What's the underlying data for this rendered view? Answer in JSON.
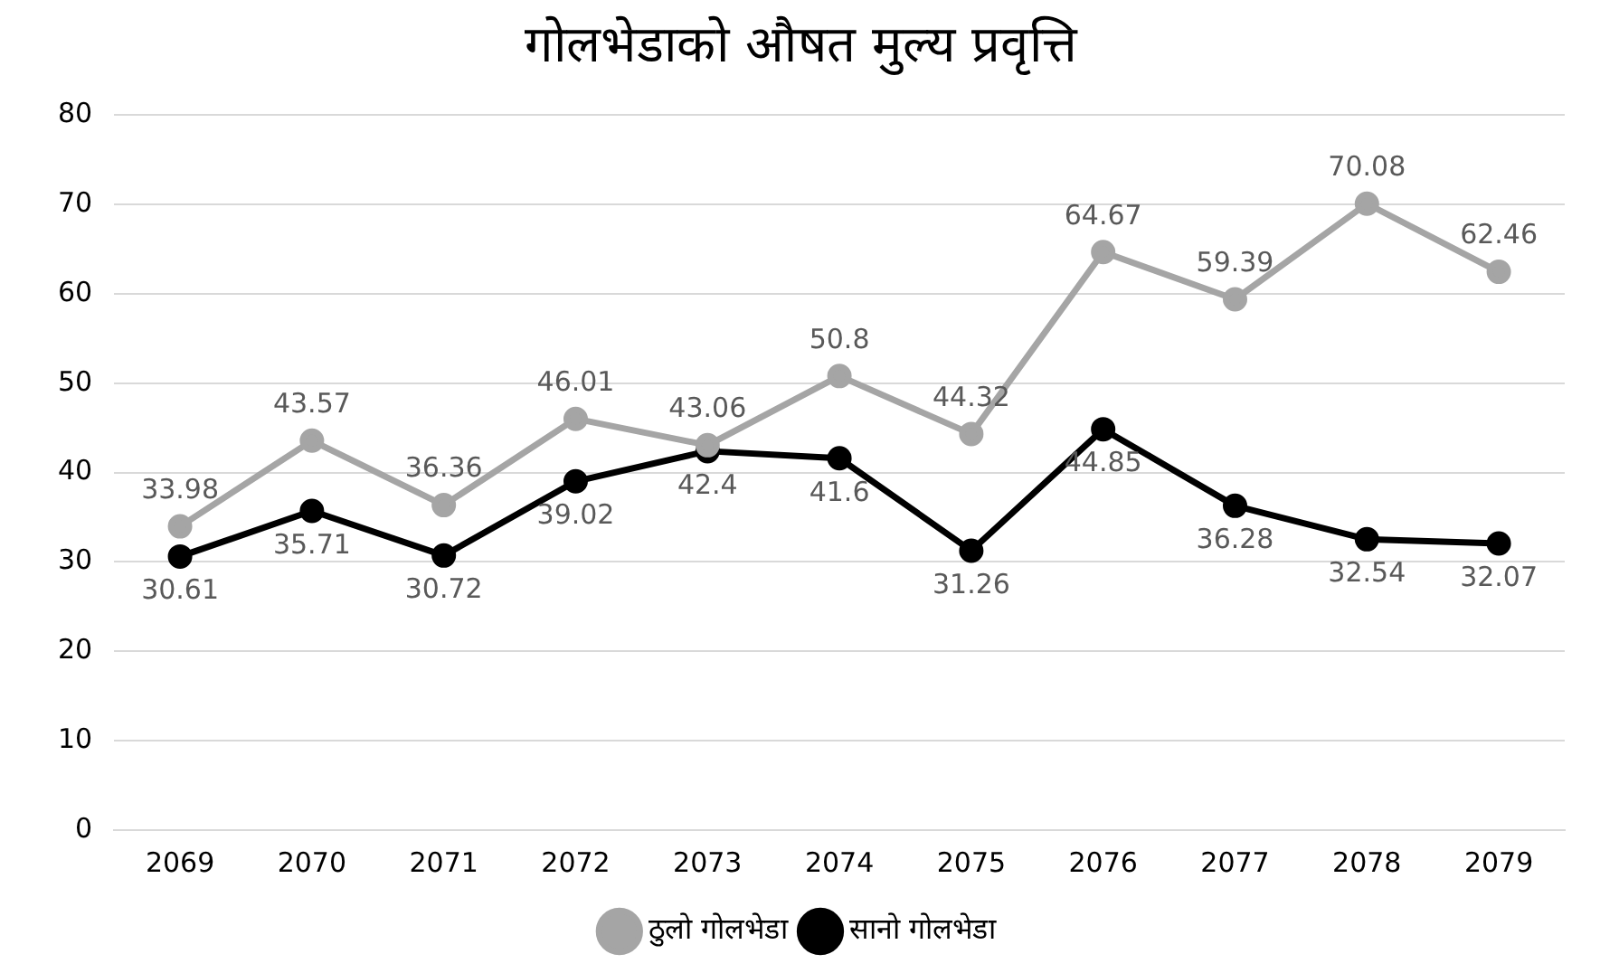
{
  "chart_data": {
    "type": "line",
    "title": "गोलभेडाको औषत मुल्य प्रवृत्ति",
    "categories": [
      "2069",
      "2070",
      "2071",
      "2072",
      "2073",
      "2074",
      "2075",
      "2076",
      "2077",
      "2078",
      "2079"
    ],
    "series": [
      {
        "name": "ठुलो गोलभेडा",
        "color": "#a5a5a5",
        "values": [
          33.98,
          43.57,
          36.36,
          46.01,
          43.06,
          50.8,
          44.32,
          64.67,
          59.39,
          70.08,
          62.46
        ]
      },
      {
        "name": "सानो गोलभेडा",
        "color": "#000000",
        "values": [
          30.61,
          35.71,
          30.72,
          39.02,
          42.4,
          41.6,
          31.26,
          44.85,
          36.28,
          32.54,
          32.07
        ]
      }
    ],
    "ylim": [
      0,
      80
    ],
    "yticks": [
      0,
      10,
      20,
      30,
      40,
      50,
      60,
      70,
      80
    ],
    "grid": "y",
    "legend": "bottom",
    "marker": "circle",
    "line_style": "solid",
    "data_labels": true
  }
}
